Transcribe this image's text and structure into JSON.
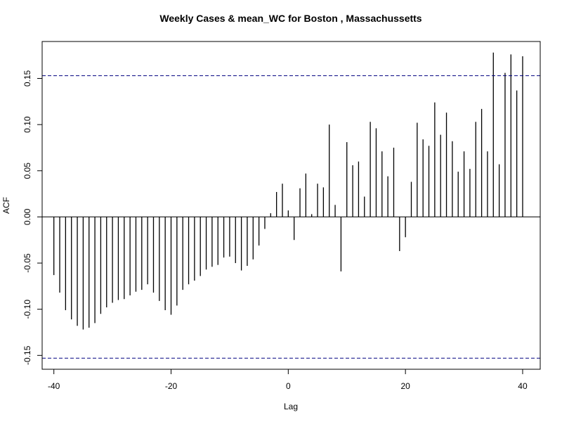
{
  "chart_data": {
    "type": "bar",
    "title": "Weekly Cases & mean_WC for Boston , Massachussetts",
    "xlabel": "Lag",
    "ylabel": "ACF",
    "xlim": [
      -42,
      43
    ],
    "ylim": [
      -0.165,
      0.19
    ],
    "x_ticks": [
      -40,
      -20,
      0,
      20,
      40
    ],
    "x_tick_labels": [
      "-40",
      "-20",
      "0",
      "20",
      "40"
    ],
    "y_ticks": [
      -0.15,
      -0.1,
      -0.05,
      0.0,
      0.05,
      0.1,
      0.15
    ],
    "y_tick_labels": [
      "-0.15",
      "-0.10",
      "-0.05",
      "0.00",
      "0.05",
      "0.10",
      "0.15"
    ],
    "confidence_limit": 0.153,
    "confidence_color": "#000080",
    "bar_color": "#000000",
    "lags": [
      -40,
      -39,
      -38,
      -37,
      -36,
      -35,
      -34,
      -33,
      -32,
      -31,
      -30,
      -29,
      -28,
      -27,
      -26,
      -25,
      -24,
      -23,
      -22,
      -21,
      -20,
      -19,
      -18,
      -17,
      -16,
      -15,
      -14,
      -13,
      -12,
      -11,
      -10,
      -9,
      -8,
      -7,
      -6,
      -5,
      -4,
      -3,
      -2,
      -1,
      0,
      1,
      2,
      3,
      4,
      5,
      6,
      7,
      8,
      9,
      10,
      11,
      12,
      13,
      14,
      15,
      16,
      17,
      18,
      19,
      20,
      21,
      22,
      23,
      24,
      25,
      26,
      27,
      28,
      29,
      30,
      31,
      32,
      33,
      34,
      35,
      36,
      37,
      38,
      39,
      40
    ],
    "values": [
      -0.063,
      -0.082,
      -0.101,
      -0.111,
      -0.118,
      -0.122,
      -0.12,
      -0.115,
      -0.105,
      -0.098,
      -0.093,
      -0.09,
      -0.089,
      -0.085,
      -0.081,
      -0.079,
      -0.073,
      -0.082,
      -0.091,
      -0.101,
      -0.106,
      -0.096,
      -0.079,
      -0.073,
      -0.069,
      -0.064,
      -0.057,
      -0.054,
      -0.052,
      -0.044,
      -0.043,
      -0.05,
      -0.058,
      -0.053,
      -0.046,
      -0.031,
      -0.013,
      0.004,
      0.027,
      0.036,
      0.007,
      -0.025,
      0.031,
      0.047,
      0.003,
      0.036,
      0.032,
      0.1,
      0.013,
      -0.059,
      0.081,
      0.056,
      0.06,
      0.022,
      0.103,
      0.096,
      0.071,
      0.044,
      0.075,
      -0.037,
      -0.022,
      0.038,
      0.102,
      0.084,
      0.077,
      0.124,
      0.089,
      0.113,
      0.082,
      0.049,
      0.071,
      0.052,
      0.103,
      0.117,
      0.071,
      0.178,
      0.057,
      0.156,
      0.176,
      0.137,
      0.174
    ]
  }
}
